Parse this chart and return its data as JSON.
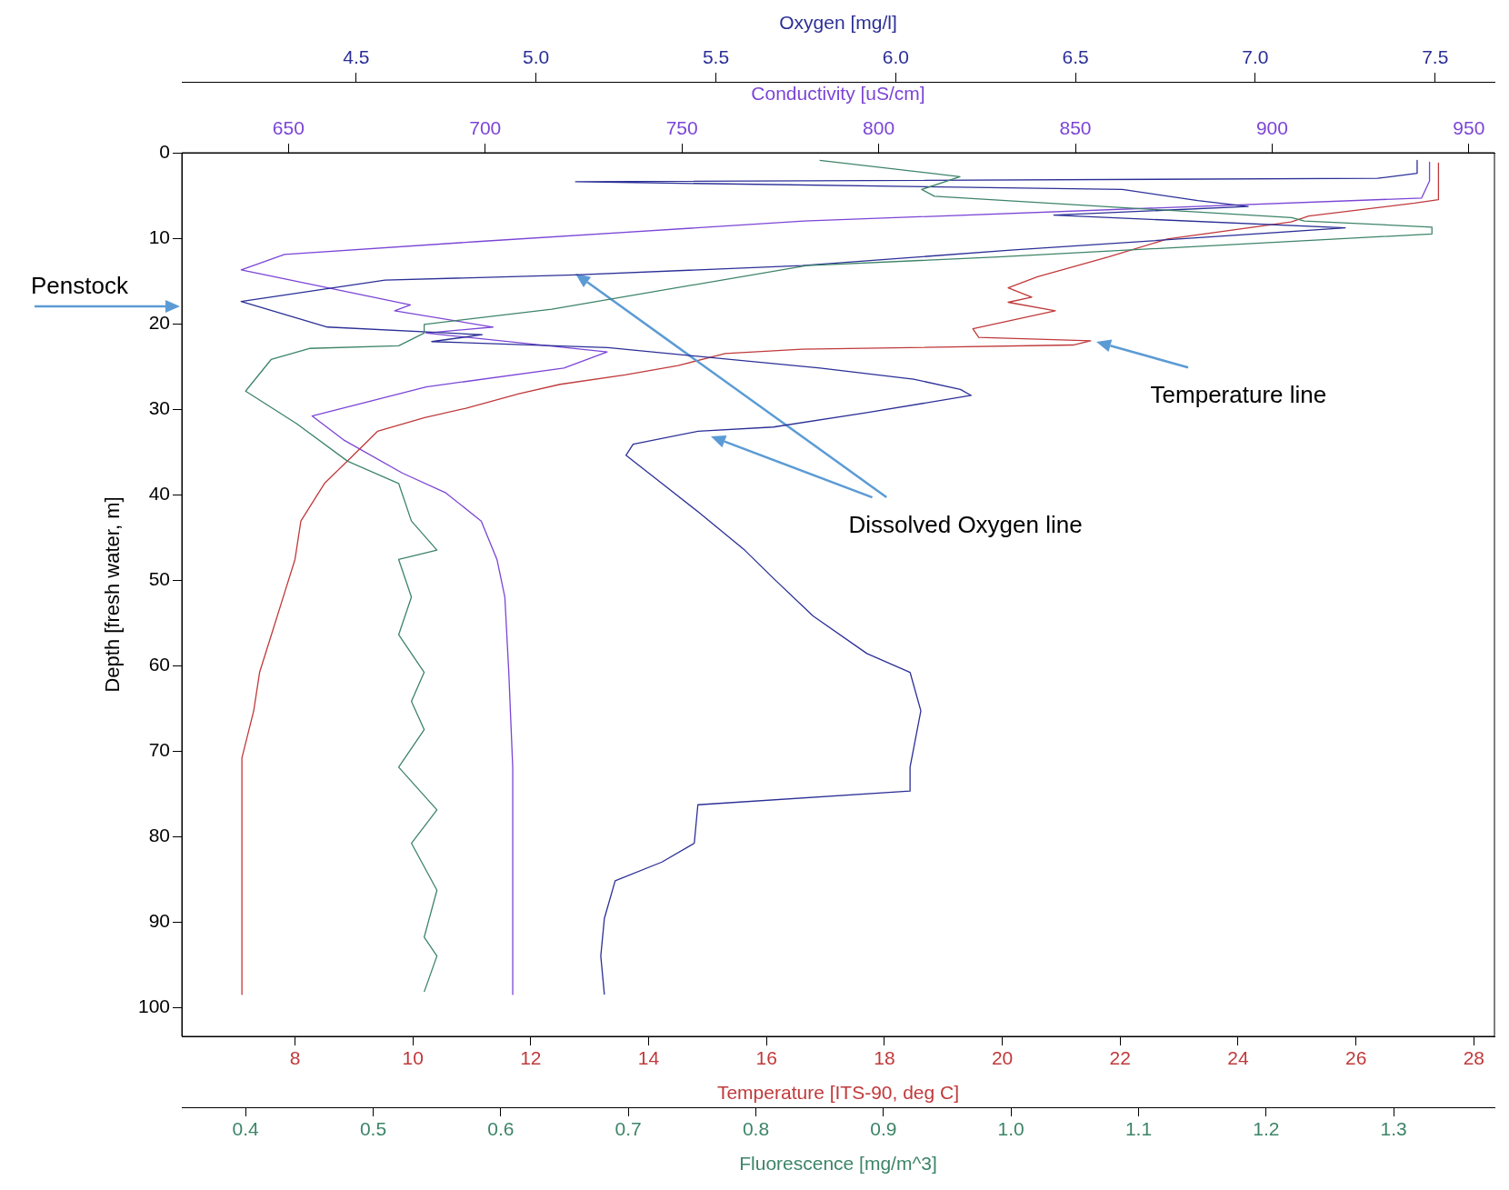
{
  "chart_data": [
    {
      "type": "line",
      "ylabel": "Depth [fresh water, m]",
      "ylim": [
        103.4,
        0
      ],
      "yticks": [
        0,
        10,
        20,
        30,
        40,
        50,
        60,
        70,
        80,
        90,
        100
      ],
      "xlabel": "Temperature [ITS-90, deg C]",
      "xlim": [
        6.08,
        28.35
      ],
      "xticks": [
        8,
        10,
        12,
        14,
        16,
        18,
        20,
        22,
        24,
        26,
        28
      ],
      "x2label": "Conductivity [uS/cm]",
      "x2lim": [
        622.9,
        956.5
      ],
      "x2ticks": [
        650,
        700,
        750,
        800,
        850,
        900,
        950
      ],
      "series": [
        {
          "color": "#c0393b",
          "x": [
            27.4,
            27.4,
            27.0,
            25.2,
            24.9,
            22.8,
            21.8,
            20.6,
            20.1,
            20.5,
            20.1,
            20.9,
            19.5,
            19.6,
            21.5,
            21.2,
            16.6,
            15.3,
            14.5,
            13.6,
            12.5,
            11.8,
            10.9,
            10.2,
            9.4,
            8.9,
            8.5,
            8.1,
            8.0,
            7.8,
            7.6,
            7.4,
            7.3,
            7.1,
            7.1
          ],
          "values": [
            1.2,
            5.5,
            5.9,
            7.4,
            8.1,
            10.1,
            12.2,
            14.5,
            15.8,
            16.9,
            17.5,
            18.5,
            20.6,
            21.6,
            22.0,
            22.5,
            23.0,
            23.5,
            24.9,
            26.0,
            27.1,
            28.2,
            29.9,
            31.0,
            32.6,
            36.0,
            38.7,
            43.1,
            47.6,
            52.0,
            56.4,
            60.8,
            65.3,
            70.8,
            98.5
          ]
        },
        {
          "axis": "x2",
          "color": "#7b45d6",
          "x": [
            940,
            940,
            938,
            781,
            698,
            649,
            638,
            681,
            677,
            702,
            685,
            731,
            720,
            685,
            656,
            664,
            679,
            690,
            699,
            703,
            705,
            706,
            707,
            707
          ],
          "values": [
            1.1,
            3.3,
            5.3,
            8.0,
            10.4,
            11.9,
            13.7,
            17.8,
            18.5,
            20.4,
            21.1,
            23.3,
            25.2,
            27.4,
            30.8,
            33.6,
            37.5,
            39.8,
            43.1,
            47.6,
            52.0,
            60.8,
            71.9,
            98.5
          ]
        }
      ],
      "annotations": [
        "Penstock",
        "Temperature line",
        "Dissolved Oxygen line"
      ]
    },
    {
      "type": "line",
      "ylim": [
        103.4,
        0
      ],
      "yticks": [
        0,
        10,
        20,
        30,
        40,
        50,
        60,
        70,
        80,
        90,
        100
      ],
      "tick_labels": "x",
      "xlabel": "Fluorescence [mg/m^3]",
      "xlim": [
        0.35,
        1.379
      ],
      "xticks": [
        0.4,
        0.5,
        0.6,
        0.7,
        0.8,
        0.9,
        {
          "value": 1,
          "label": "1.0"
        },
        1.1,
        1.2,
        1.3
      ],
      "x2label": "Oxygen [mg/l]",
      "x2lim": [
        4.015,
        7.665
      ],
      "x2ticks": [
        {
          "value": 4.5,
          "label": "4.5"
        },
        {
          "value": 5,
          "label": "5.0"
        },
        {
          "value": 5.5,
          "label": "5.5"
        },
        {
          "value": 6,
          "label": "6.0"
        },
        {
          "value": 6.5,
          "label": "6.5"
        },
        {
          "value": 7,
          "label": "7.0"
        },
        {
          "value": 7.5,
          "label": "7.5"
        }
      ],
      "series": [
        {
          "color": "#3d8468",
          "x": [
            0.85,
            0.96,
            0.93,
            0.94,
            1.22,
            1.23,
            1.33,
            1.33,
            0.99,
            0.84,
            0.64,
            0.54,
            0.54,
            0.52,
            0.45,
            0.42,
            0.4,
            0.44,
            0.48,
            0.52,
            0.53,
            0.55,
            0.52,
            0.53,
            0.52,
            0.54,
            0.53,
            0.54,
            0.52,
            0.55,
            0.53,
            0.55,
            0.54,
            0.55,
            0.54
          ],
          "values": [
            0.9,
            2.8,
            4.3,
            5.1,
            7.6,
            8.0,
            8.7,
            9.5,
            12.2,
            13.2,
            18.3,
            20.1,
            21.1,
            22.6,
            22.9,
            24.2,
            27.9,
            31.7,
            36.1,
            38.7,
            43.1,
            46.5,
            47.6,
            52.0,
            56.4,
            60.8,
            64.2,
            67.5,
            71.9,
            76.9,
            80.8,
            86.3,
            91.8,
            94.0,
            98.2
          ]
        },
        {
          "axis": "x2",
          "color": "#2b2f96",
          "x": [
            7.45,
            7.45,
            7.34,
            5.11,
            6.63,
            6.84,
            6.98,
            6.44,
            7.25,
            6.32,
            5.74,
            5.11,
            4.58,
            4.18,
            4.42,
            4.85,
            4.71,
            5.2,
            5.79,
            6.05,
            6.18,
            6.21,
            5.92,
            5.66,
            5.45,
            5.27,
            5.25,
            5.35,
            5.45,
            5.58,
            5.66,
            5.77,
            5.92,
            6.04,
            6.07,
            6.04,
            6.04,
            5.45,
            5.44,
            5.35,
            5.22,
            5.19,
            5.18,
            5.19
          ],
          "values": [
            0.9,
            2.4,
            3.0,
            3.4,
            4.3,
            5.6,
            6.3,
            7.3,
            8.8,
            11.4,
            13.2,
            14.3,
            14.9,
            17.4,
            20.4,
            21.3,
            22.1,
            22.8,
            25.2,
            26.5,
            27.7,
            28.4,
            30.4,
            32.1,
            32.6,
            34.1,
            35.4,
            38.7,
            42.0,
            46.5,
            49.8,
            54.2,
            58.6,
            60.8,
            65.3,
            71.9,
            74.7,
            76.3,
            80.8,
            83.0,
            85.2,
            89.6,
            94.0,
            98.5
          ]
        }
      ]
    }
  ]
}
